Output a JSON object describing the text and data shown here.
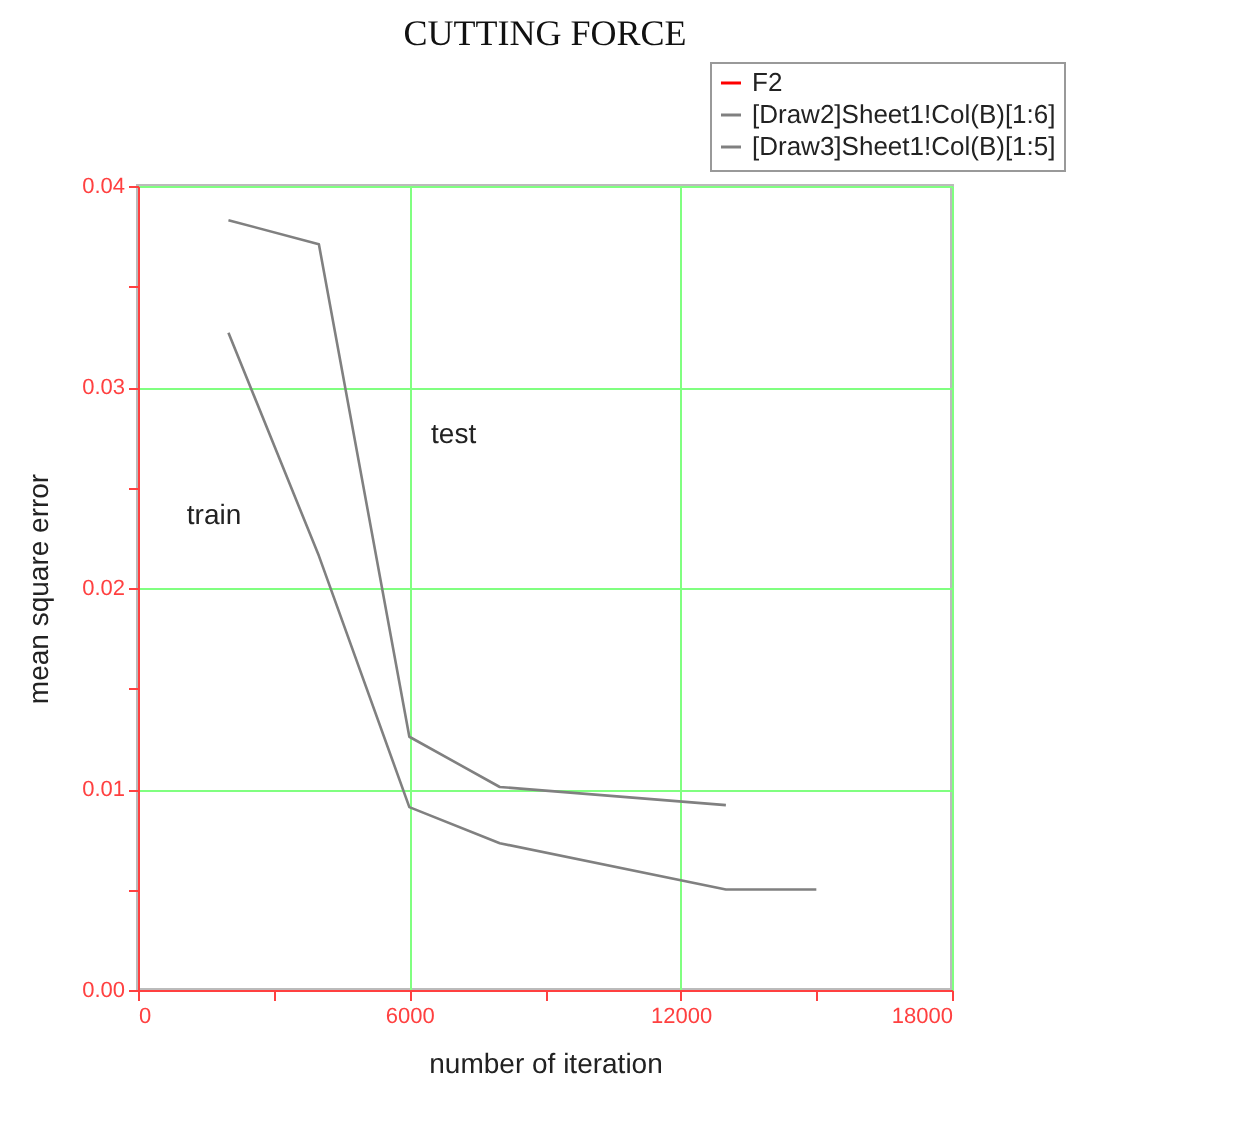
{
  "chart_data": {
    "type": "line",
    "title": "CUTTING FORCE",
    "xlabel": "number of iteration",
    "ylabel": "mean square error",
    "xlim": [
      0,
      18000
    ],
    "xticks": [
      0,
      {
        "value": 3000,
        "label": null
      },
      6000,
      {
        "value": 9000,
        "label": null
      },
      12000,
      {
        "value": 15000,
        "label": null
      },
      18000
    ],
    "ylim": [
      0,
      0.04
    ],
    "yticks": [
      {
        "value": 0,
        "label": "0.00"
      },
      {
        "value": 0.005,
        "label": null
      },
      {
        "value": 0.01,
        "label": "0.01"
      },
      {
        "value": 0.015,
        "label": null
      },
      {
        "value": 0.02,
        "label": "0.02"
      },
      {
        "value": 0.025,
        "label": null
      },
      {
        "value": 0.03,
        "label": "0.03"
      },
      {
        "value": 0.035,
        "label": null
      },
      {
        "value": 0.04,
        "label": "0.04"
      }
    ],
    "grid": true,
    "legend": "top right",
    "series": [
      {
        "name": "F2",
        "color": "#ff0000"
      },
      {
        "name": "[Draw2]Sheet1!Col(B)[1:6]",
        "color": "#808080",
        "x": [
          2000,
          4000,
          6000,
          8000,
          13000,
          15000
        ],
        "values": [
          0.0327,
          0.0216,
          0.0091,
          0.0073,
          0.005,
          0.005
        ]
      },
      {
        "name": "[Draw3]Sheet1!Col(B)[1:5]",
        "color": "#808080",
        "x": [
          2000,
          4000,
          6000,
          8000,
          13000
        ],
        "values": [
          0.0383,
          0.0371,
          0.0126,
          0.0101,
          0.0092
        ]
      }
    ],
    "annotations": [
      "train",
      "test"
    ]
  }
}
